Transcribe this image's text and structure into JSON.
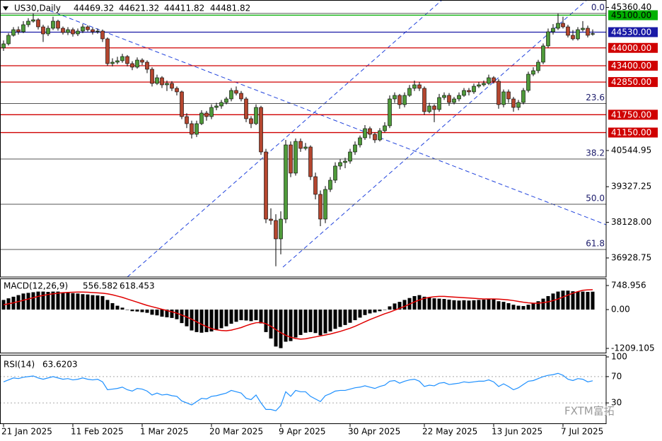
{
  "chart_data": {
    "type": "candlestick",
    "title": "US30,Daily",
    "categories": [
      "21 Jan 2025",
      null,
      null,
      null,
      null,
      null,
      null,
      null,
      null,
      null,
      null,
      null,
      null,
      null,
      "11 Feb 2025",
      null,
      null,
      null,
      null,
      null,
      null,
      null,
      null,
      null,
      null,
      null,
      null,
      null,
      "1 Mar 2025",
      null,
      null,
      null,
      null,
      null,
      null,
      null,
      null,
      null,
      null,
      null,
      null,
      null,
      "20 Mar 2025",
      null,
      null,
      null,
      null,
      null,
      null,
      null,
      null,
      null,
      null,
      null,
      null,
      null,
      "9 Apr 2025",
      null,
      null,
      null,
      null,
      null,
      null,
      null,
      null,
      null,
      null,
      null,
      null,
      null,
      "30 Apr 2025",
      null,
      null,
      null,
      null,
      null,
      null,
      null,
      null,
      null,
      null,
      null,
      null,
      null,
      null,
      "22 May 2025",
      null,
      null,
      null,
      null,
      null,
      null,
      null,
      null,
      null,
      null,
      null,
      null,
      null,
      "13 Jun 2025",
      null,
      null,
      null,
      null,
      null,
      null,
      null,
      null,
      null,
      null,
      null,
      null,
      null,
      "7 Jul 2025",
      null,
      null,
      null,
      null,
      null,
      null
    ],
    "ohlc": [
      [
        44000,
        44250,
        43900,
        44137
      ],
      [
        44137,
        44500,
        44080,
        44423
      ],
      [
        44423,
        44700,
        44380,
        44613
      ],
      [
        44613,
        44720,
        44450,
        44542
      ],
      [
        44542,
        44900,
        44500,
        44780
      ],
      [
        44780,
        45000,
        44700,
        44899
      ],
      [
        44899,
        45150,
        44850,
        44946
      ],
      [
        44946,
        45000,
        44620,
        44708
      ],
      [
        44708,
        44780,
        44200,
        44470
      ],
      [
        44470,
        44750,
        44400,
        44661
      ],
      [
        44661,
        45050,
        44600,
        44899
      ],
      [
        44899,
        44950,
        44580,
        44661
      ],
      [
        44661,
        44720,
        44450,
        44518
      ],
      [
        44518,
        44700,
        44430,
        44613
      ],
      [
        44613,
        44680,
        44380,
        44470
      ],
      [
        44470,
        44650,
        44400,
        44566
      ],
      [
        44566,
        44800,
        44500,
        44708
      ],
      [
        44708,
        44760,
        44550,
        44613
      ],
      [
        44613,
        44680,
        44450,
        44542
      ],
      [
        44542,
        44650,
        44480,
        44566
      ],
      [
        44566,
        44620,
        44200,
        44304
      ],
      [
        44304,
        44350,
        43400,
        43471
      ],
      [
        43471,
        43650,
        43380,
        43519
      ],
      [
        43519,
        43700,
        43450,
        43567
      ],
      [
        43567,
        43800,
        43500,
        43709
      ],
      [
        43709,
        43760,
        43380,
        43471
      ],
      [
        43471,
        43550,
        43250,
        43352
      ],
      [
        43352,
        43680,
        43300,
        43590
      ],
      [
        43590,
        43650,
        43420,
        43519
      ],
      [
        43519,
        43580,
        43150,
        43281
      ],
      [
        43281,
        43350,
        42700,
        42805
      ],
      [
        42805,
        43100,
        42750,
        42995
      ],
      [
        42995,
        43050,
        42650,
        42757
      ],
      [
        42757,
        42900,
        42550,
        42805
      ],
      [
        42805,
        42880,
        42550,
        42639
      ],
      [
        42639,
        42700,
        42400,
        42520
      ],
      [
        42520,
        42560,
        41600,
        41687
      ],
      [
        41687,
        41800,
        41300,
        41449
      ],
      [
        41449,
        41550,
        40950,
        41092
      ],
      [
        41092,
        41550,
        41000,
        41449
      ],
      [
        41449,
        41900,
        41400,
        41806
      ],
      [
        41806,
        41880,
        41550,
        41687
      ],
      [
        41687,
        42100,
        41600,
        41996
      ],
      [
        41996,
        42150,
        41900,
        42044
      ],
      [
        42044,
        42250,
        41950,
        42163
      ],
      [
        42163,
        42350,
        42100,
        42282
      ],
      [
        42282,
        42650,
        42200,
        42567
      ],
      [
        42567,
        42700,
        42400,
        42472
      ],
      [
        42472,
        42550,
        42200,
        42282
      ],
      [
        42282,
        42350,
        41500,
        41616
      ],
      [
        41616,
        41700,
        41300,
        41449
      ],
      [
        41449,
        42100,
        41400,
        41996
      ],
      [
        41996,
        42050,
        40400,
        40497
      ],
      [
        40497,
        40600,
        38100,
        38237
      ],
      [
        38237,
        38600,
        38050,
        38190
      ],
      [
        38190,
        38400,
        36650,
        37571
      ],
      [
        37571,
        38500,
        37050,
        38237
      ],
      [
        38237,
        40900,
        38100,
        40735
      ],
      [
        40735,
        40850,
        39650,
        39784
      ],
      [
        39784,
        40950,
        39700,
        40854
      ],
      [
        40854,
        40950,
        40500,
        40616
      ],
      [
        40616,
        40800,
        40550,
        40664
      ],
      [
        40664,
        40720,
        39550,
        39665
      ],
      [
        39665,
        39800,
        38900,
        39070
      ],
      [
        39070,
        39200,
        38000,
        38237
      ],
      [
        38237,
        39350,
        38100,
        39236
      ],
      [
        39236,
        39650,
        39150,
        39546
      ],
      [
        39546,
        40150,
        39450,
        40022
      ],
      [
        40022,
        40250,
        39900,
        40141
      ],
      [
        40141,
        40300,
        39950,
        40188
      ],
      [
        40188,
        40600,
        40100,
        40497
      ],
      [
        40497,
        40850,
        40400,
        40735
      ],
      [
        40735,
        41050,
        40650,
        40973
      ],
      [
        40973,
        41400,
        40900,
        41282
      ],
      [
        41282,
        41350,
        40950,
        41092
      ],
      [
        41092,
        41150,
        40800,
        40902
      ],
      [
        40902,
        41300,
        40850,
        41211
      ],
      [
        41211,
        41500,
        41150,
        41378
      ],
      [
        41378,
        42400,
        41300,
        42282
      ],
      [
        42282,
        42500,
        42150,
        42401
      ],
      [
        42401,
        42450,
        41950,
        42091
      ],
      [
        42091,
        42500,
        42000,
        42401
      ],
      [
        42401,
        42750,
        42350,
        42639
      ],
      [
        42639,
        42900,
        42550,
        42757
      ],
      [
        42757,
        42850,
        42550,
        42639
      ],
      [
        42639,
        42700,
        41750,
        41854
      ],
      [
        41854,
        42150,
        41800,
        42044
      ],
      [
        42044,
        42100,
        41500,
        41925
      ],
      [
        41925,
        42450,
        41850,
        42329
      ],
      [
        42329,
        42500,
        42250,
        42401
      ],
      [
        42401,
        42480,
        42050,
        42163
      ],
      [
        42163,
        42350,
        42100,
        42282
      ],
      [
        42282,
        42500,
        42200,
        42401
      ],
      [
        42401,
        42650,
        42350,
        42567
      ],
      [
        42567,
        42650,
        42400,
        42520
      ],
      [
        42520,
        42800,
        42450,
        42710
      ],
      [
        42710,
        42850,
        42650,
        42757
      ],
      [
        42757,
        42900,
        42700,
        42805
      ],
      [
        42805,
        43100,
        42750,
        42995
      ],
      [
        42995,
        43050,
        42800,
        42876
      ],
      [
        42876,
        42950,
        41950,
        42091
      ],
      [
        42091,
        42600,
        42000,
        42520
      ],
      [
        42520,
        42600,
        42150,
        42282
      ],
      [
        42282,
        42350,
        41850,
        41996
      ],
      [
        41996,
        42250,
        41900,
        42163
      ],
      [
        42163,
        42650,
        42100,
        42567
      ],
      [
        42567,
        43200,
        42500,
        43114
      ],
      [
        43114,
        43350,
        43050,
        43233
      ],
      [
        43233,
        43600,
        43150,
        43519
      ],
      [
        43519,
        44150,
        43450,
        44066
      ],
      [
        44066,
        44650,
        44000,
        44542
      ],
      [
        44542,
        44800,
        44450,
        44661
      ],
      [
        44661,
        45150,
        44600,
        44828
      ],
      [
        44828,
        45050,
        44650,
        44708
      ],
      [
        44708,
        44780,
        44350,
        44423
      ],
      [
        44423,
        44600,
        44250,
        44304
      ],
      [
        44304,
        44700,
        44250,
        44613
      ],
      [
        44613,
        44900,
        44550,
        44661
      ],
      [
        44661,
        44750,
        44350,
        44423
      ],
      [
        44469.32,
        44621.32,
        44411.82,
        44481.82
      ]
    ],
    "ylim": [
      36286,
      45612
    ],
    "yticks": [
      {
        "value": 45360.4,
        "label": "45360.40"
      },
      40544.95,
      39327.25,
      {
        "value": 38128,
        "label": "38128.00"
      },
      36928.75
    ],
    "levels": [
      {
        "value": 45100,
        "label": "45100.00",
        "color": "#00b000",
        "label_color": "#000000"
      },
      {
        "value": 44530,
        "label": "44530.00",
        "color": "#1a1aa6",
        "label_color": "#ffffff"
      },
      {
        "value": 44000,
        "label": "44000.00",
        "color": "#d00000",
        "label_color": "#ffffff"
      },
      {
        "value": 43400,
        "label": "43400.00",
        "color": "#d00000",
        "label_color": "#ffffff"
      },
      {
        "value": 42850,
        "label": "42850.00",
        "color": "#d00000",
        "label_color": "#ffffff"
      },
      {
        "value": 41750,
        "label": "41750.00",
        "color": "#d00000",
        "label_color": "#ffffff"
      },
      {
        "value": 41150,
        "label": "41150.00",
        "color": "#d00000",
        "label_color": "#ffffff"
      }
    ],
    "fibonacci": [
      {
        "value": 45160,
        "label": "0.0"
      },
      {
        "value": 42127,
        "label": "23.6"
      },
      {
        "value": 40260,
        "label": "38.2"
      },
      {
        "value": 38737,
        "label": "50.0"
      },
      {
        "value": 37215,
        "label": "61.8"
      }
    ],
    "colors": {
      "up": "#4f9a3a",
      "down": "#b4462f",
      "wick": "#000000"
    },
    "macd": {
      "type": "bar",
      "title": "MACD(12,26,9)",
      "histogram": [
        300,
        350,
        400,
        450,
        500,
        520,
        540,
        560,
        560,
        550,
        560,
        560,
        540,
        530,
        510,
        500,
        480,
        470,
        450,
        440,
        420,
        300,
        200,
        120,
        60,
        0,
        -50,
        -60,
        -80,
        -100,
        -160,
        -180,
        -220,
        -240,
        -260,
        -300,
        -420,
        -520,
        -650,
        -700,
        -720,
        -700,
        -680,
        -640,
        -580,
        -520,
        -440,
        -380,
        -330,
        -340,
        -360,
        -330,
        -430,
        -700,
        -900,
        -1150,
        -1200,
        -1000,
        -980,
        -870,
        -790,
        -720,
        -700,
        -730,
        -800,
        -740,
        -680,
        -600,
        -540,
        -480,
        -410,
        -330,
        -250,
        -170,
        -120,
        -90,
        -50,
        -10,
        100,
        190,
        240,
        300,
        360,
        420,
        450,
        400,
        380,
        350,
        340,
        330,
        310,
        290,
        280,
        290,
        280,
        290,
        300,
        310,
        320,
        320,
        260,
        240,
        200,
        150,
        120,
        110,
        150,
        200,
        260,
        340,
        420,
        500,
        560,
        590,
        590,
        570,
        560,
        560,
        550,
        556.582
      ],
      "signal": [
        150,
        180,
        210,
        250,
        290,
        330,
        370,
        410,
        440,
        470,
        490,
        510,
        525,
        535,
        540,
        545,
        545,
        540,
        530,
        520,
        510,
        490,
        460,
        420,
        380,
        330,
        280,
        230,
        180,
        130,
        90,
        50,
        10,
        -30,
        -70,
        -110,
        -170,
        -230,
        -300,
        -380,
        -460,
        -530,
        -590,
        -630,
        -650,
        -660,
        -640,
        -600,
        -560,
        -500,
        -450,
        -410,
        -400,
        -440,
        -520,
        -620,
        -720,
        -800,
        -860,
        -900,
        -920,
        -910,
        -880,
        -850,
        -820,
        -790,
        -760,
        -720,
        -680,
        -630,
        -580,
        -520,
        -450,
        -380,
        -310,
        -250,
        -190,
        -130,
        -80,
        -20,
        40,
        100,
        170,
        240,
        300,
        350,
        380,
        400,
        410,
        410,
        400,
        390,
        380,
        370,
        360,
        350,
        340,
        330,
        330,
        330,
        325,
        315,
        300,
        280,
        255,
        230,
        210,
        200,
        200,
        215,
        240,
        280,
        330,
        390,
        450,
        510,
        560,
        600,
        615,
        618.453
      ],
      "ylim": [
        -1363,
        947
      ],
      "yticks": [
        748.956,
        {
          "value": 0,
          "label": "0.00"
        },
        -1209.105
      ],
      "hist_color": "#000000",
      "signal_color": "#e00000"
    },
    "rsi": {
      "type": "line",
      "title": "RSI(14)",
      "values": [
        62,
        65,
        68,
        67,
        69,
        70,
        71,
        68,
        66,
        68,
        70,
        68,
        66,
        67,
        65,
        66,
        68,
        66,
        65,
        66,
        62,
        50,
        51,
        52,
        54,
        50,
        48,
        52,
        51,
        48,
        42,
        45,
        42,
        43,
        41,
        40,
        33,
        30,
        27,
        32,
        37,
        36,
        40,
        41,
        43,
        45,
        49,
        47,
        45,
        37,
        35,
        42,
        30,
        20,
        20,
        18,
        26,
        47,
        40,
        49,
        47,
        47,
        40,
        36,
        32,
        41,
        44,
        48,
        49,
        49,
        51,
        53,
        54,
        56,
        54,
        52,
        55,
        57,
        63,
        64,
        60,
        63,
        65,
        66,
        63,
        55,
        57,
        56,
        60,
        61,
        58,
        59,
        60,
        62,
        61,
        62,
        63,
        63,
        65,
        62,
        55,
        59,
        55,
        50,
        53,
        58,
        63,
        64,
        67,
        70,
        72,
        73,
        75,
        72,
        66,
        64,
        67,
        66,
        62,
        63.6203
      ],
      "ylim": [
        0,
        100
      ],
      "yticks": [
        100,
        70,
        30
      ],
      "color": "#1e90ff"
    },
    "watermark": "FXTM富拓"
  }
}
